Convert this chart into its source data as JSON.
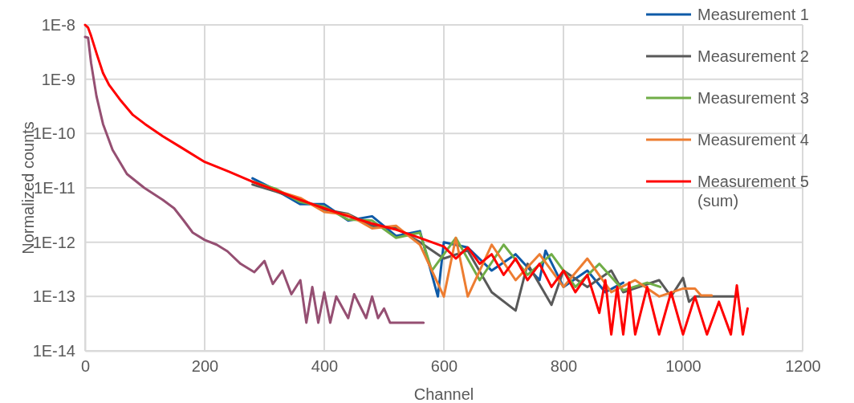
{
  "chart_data": {
    "type": "line",
    "xlabel": "Channel",
    "ylabel": "Normalized counts",
    "log": "y",
    "grid": true,
    "legend": "right",
    "marker": "none",
    "line_style": "solid",
    "xlim": [
      0,
      1200
    ],
    "xticks": [
      0,
      200,
      400,
      600,
      800,
      1000,
      1200
    ],
    "ylim": [
      1e-14,
      1e-08
    ],
    "yticks": [
      {
        "value": 1e-14,
        "label": "1E-14"
      },
      {
        "value": 1e-13,
        "label": "1E-13"
      },
      {
        "value": 1e-12,
        "label": "1E-12"
      },
      {
        "value": 1e-11,
        "label": "1E-11"
      },
      {
        "value": 1e-10,
        "label": "1E-10"
      },
      {
        "value": 1e-09,
        "label": "1E-9"
      },
      {
        "value": 1e-08,
        "label": "1E-8"
      }
    ],
    "series": [
      {
        "name": "Measurement 1",
        "color": "#0e5aa7",
        "x": [
          280,
          320,
          360,
          400,
          440,
          480,
          520,
          560,
          590,
          600,
          640,
          680,
          720,
          760,
          770,
          800,
          840,
          870,
          900
        ],
        "values": [
          1.5e-11,
          9e-12,
          5e-12,
          5e-12,
          2.5e-12,
          3e-12,
          1.3e-12,
          1.6e-12,
          1e-13,
          1e-12,
          8e-13,
          3e-13,
          6e-13,
          2e-13,
          7e-13,
          1.5e-13,
          3e-13,
          1.2e-13,
          1.8e-13
        ]
      },
      {
        "name": "Measurement 2",
        "color": "#595959",
        "x": [
          280,
          320,
          360,
          400,
          440,
          480,
          520,
          560,
          600,
          640,
          680,
          720,
          740,
          780,
          800,
          840,
          880,
          900,
          960,
          980,
          1000,
          1010,
          1020,
          1090
        ],
        "values": [
          1.15e-11,
          8.5e-12,
          6e-12,
          4e-12,
          3.3e-12,
          2e-12,
          1.8e-12,
          1e-12,
          5e-13,
          7e-13,
          1.2e-13,
          5.5e-14,
          4e-13,
          7e-14,
          3e-13,
          1.5e-13,
          3e-13,
          1.2e-13,
          2e-13,
          1e-13,
          2.2e-13,
          8e-14,
          1e-13,
          1e-13
        ]
      },
      {
        "name": "Measurement 3",
        "color": "#70ad47",
        "x": [
          280,
          320,
          360,
          400,
          440,
          480,
          520,
          560,
          580,
          620,
          660,
          700,
          740,
          780,
          820,
          860,
          900,
          940,
          962
        ],
        "values": [
          1.3e-11,
          9.5e-12,
          5.5e-12,
          4.5e-12,
          2.6e-12,
          2.5e-12,
          1.2e-12,
          1.5e-12,
          3e-13,
          1.2e-12,
          2e-13,
          9e-13,
          2.5e-13,
          6e-13,
          1.5e-13,
          4e-13,
          1.3e-13,
          1.8e-13,
          1.5e-13
        ]
      },
      {
        "name": "Measurement 4",
        "color": "#ed7d31",
        "x": [
          280,
          320,
          360,
          400,
          440,
          480,
          520,
          560,
          600,
          620,
          640,
          680,
          720,
          760,
          800,
          840,
          880,
          920,
          960,
          1000,
          1020,
          1030,
          1048
        ],
        "values": [
          1.3e-11,
          8.9e-12,
          6.5e-12,
          3.6e-12,
          3.2e-12,
          1.8e-12,
          2e-12,
          9e-13,
          1e-13,
          1.2e-12,
          1e-13,
          9e-13,
          2e-13,
          6e-13,
          1.5e-13,
          5e-13,
          1.2e-13,
          2e-13,
          1e-13,
          1.4e-13,
          1.4e-13,
          1.05e-13,
          1.05e-13
        ]
      },
      {
        "name": "Measurement 5 (sum)",
        "color": "#ff0000",
        "x": [
          0,
          5,
          10,
          20,
          30,
          40,
          60,
          80,
          100,
          130,
          160,
          200,
          240,
          280,
          320,
          360,
          400,
          440,
          480,
          520,
          560,
          600,
          620,
          640,
          660,
          680,
          700,
          720,
          740,
          760,
          780,
          800,
          820,
          840,
          860,
          870,
          880,
          890,
          900,
          910,
          920,
          940,
          960,
          980,
          1000,
          1020,
          1040,
          1060,
          1080,
          1090,
          1100,
          1108
        ],
        "values": [
          1e-08,
          8.9e-09,
          6.3e-09,
          2.8e-09,
          1.3e-09,
          7.9e-10,
          4e-10,
          2.2e-10,
          1.5e-10,
          8.9e-11,
          5.6e-11,
          3e-11,
          2e-11,
          1.3e-11,
          8.9e-12,
          6e-12,
          4.2e-12,
          3e-12,
          2.2e-12,
          1.7e-12,
          1.2e-12,
          8.3e-13,
          5e-13,
          8e-13,
          4e-13,
          6e-13,
          2.5e-13,
          5e-13,
          2e-13,
          4e-13,
          1.5e-13,
          3e-13,
          1.2e-13,
          2.5e-13,
          5e-14,
          2e-13,
          2e-14,
          1.5e-13,
          2e-14,
          1.8e-13,
          2e-14,
          1.5e-13,
          2e-14,
          1.2e-13,
          2e-14,
          1e-13,
          2e-14,
          8e-14,
          2e-14,
          1.6e-13,
          2e-14,
          6e-14
        ]
      },
      {
        "color": "#954f72",
        "x": [
          0,
          5,
          10,
          19,
          30,
          46,
          70,
          99,
          130,
          149,
          165,
          180,
          200,
          220,
          238,
          260,
          283,
          300,
          314,
          330,
          345,
          360,
          370,
          380,
          390,
          400,
          410,
          420,
          440,
          450,
          470,
          480,
          490,
          500,
          510,
          566
        ],
        "values": [
          6e-09,
          5.8e-09,
          2e-09,
          4.9e-10,
          1.5e-10,
          5e-11,
          1.8e-11,
          1e-11,
          6e-12,
          4.2e-12,
          2.5e-12,
          1.5e-12,
          1.1e-12,
          9e-13,
          6.8e-13,
          4e-13,
          2.8e-13,
          4.5e-13,
          1.7e-13,
          3e-13,
          1.1e-13,
          2e-13,
          3.3e-14,
          1.5e-13,
          3.3e-14,
          1.2e-13,
          3.3e-14,
          1e-13,
          4e-14,
          1.1e-13,
          4e-14,
          1e-13,
          4e-14,
          6e-14,
          3.3e-14,
          3.3e-14
        ]
      }
    ]
  }
}
